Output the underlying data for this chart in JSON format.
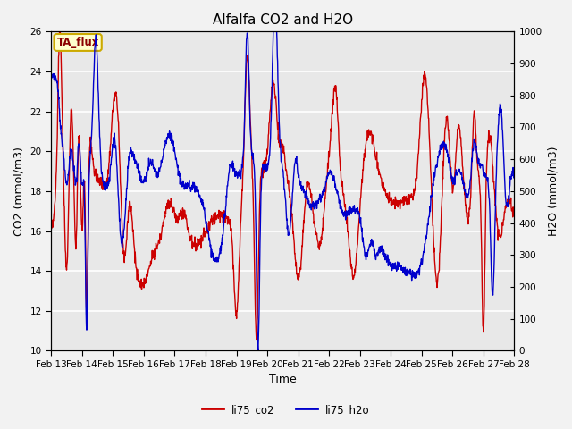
{
  "title": "Alfalfa CO2 and H2O",
  "xlabel": "Time",
  "ylabel_left": "CO2 (mmol/m3)",
  "ylabel_right": "H2O (mmol/m3)",
  "ylim_left": [
    10,
    26
  ],
  "ylim_right": [
    0,
    1000
  ],
  "yticks_left": [
    10,
    12,
    14,
    16,
    18,
    20,
    22,
    24,
    26
  ],
  "yticks_right": [
    0,
    100,
    200,
    300,
    400,
    500,
    600,
    700,
    800,
    900,
    1000
  ],
  "xtick_labels": [
    "Feb 13",
    "Feb 14",
    "Feb 15",
    "Feb 16",
    "Feb 17",
    "Feb 18",
    "Feb 19",
    "Feb 20",
    "Feb 21",
    "Feb 22",
    "Feb 23",
    "Feb 24",
    "Feb 25",
    "Feb 26",
    "Feb 27",
    "Feb 28"
  ],
  "legend_labels": [
    "li75_co2",
    "li75_h2o"
  ],
  "legend_colors": [
    "#cc0000",
    "#0000cc"
  ],
  "box_label": "TA_flux",
  "box_facecolor": "#ffffcc",
  "box_edgecolor": "#ccaa00",
  "background_color": "#e8e8e8",
  "outer_background": "#f2f2f2",
  "grid_color": "#ffffff",
  "line_color_co2": "#cc0000",
  "line_color_h2o": "#0000cc",
  "line_width": 1.0,
  "title_fontsize": 11,
  "axis_label_fontsize": 9,
  "tick_fontsize": 7.5
}
